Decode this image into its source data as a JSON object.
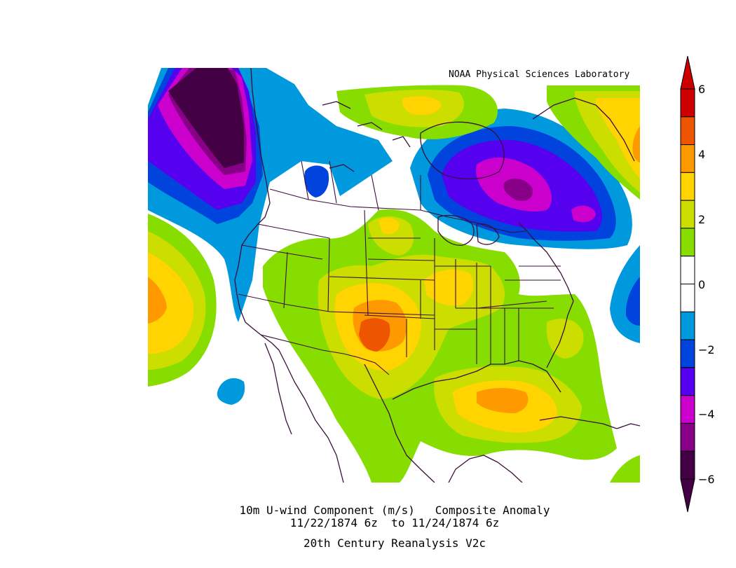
{
  "credit": "NOAA Physical Sciences Laboratory",
  "caption": {
    "line1": "10m U-wind Component (m/s)   Composite Anomaly",
    "line2": "11/22/1874 6z  to 11/24/1874 6z",
    "line3": "20th Century Reanalysis V2c"
  },
  "colorbar": {
    "ticks": [
      "6",
      "4",
      "2",
      "0",
      "−2",
      "−4",
      "−6"
    ],
    "bins": [
      "#cc0000",
      "#ee5500",
      "#ff9900",
      "#ffd400",
      "#ccdd00",
      "#88dd00",
      "#ffffff",
      "#ffffff",
      "#0099dd",
      "#0044dd",
      "#5500ee",
      "#cc00cc",
      "#880088",
      "#440044"
    ]
  },
  "colors": {
    "neg6": "#440044",
    "neg5": "#880088",
    "neg4": "#cc00cc",
    "neg3": "#5500ee",
    "neg2": "#0044dd",
    "neg1": "#0099dd",
    "pos1": "#88dd00",
    "pos2": "#ccdd00",
    "pos3": "#ffd400",
    "pos4": "#ff9900",
    "pos5": "#ee5500",
    "coast": "#3a0f3a"
  }
}
